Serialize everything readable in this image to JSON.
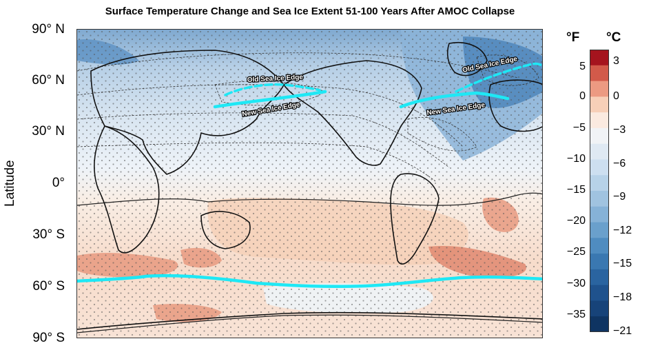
{
  "title": "Surface Temperature Change and Sea Ice Extent 51-100 Years After AMOC Collapse",
  "axis": {
    "ylabel": "Latitude",
    "lat_ticks": [
      "90° N",
      "60° N",
      "30° N",
      "0°",
      "30° S",
      "60° S",
      "90° S"
    ]
  },
  "annotations": {
    "old_edge_pacific": "Old Sea Ice Edge",
    "new_edge_pacific": "New Sea Ice Edge",
    "old_edge_atlantic": "Old Sea Ice Edge",
    "new_edge_atlantic": "New Sea Ice Edge"
  },
  "colorbar": {
    "unit_f": "°F",
    "unit_c": "°C",
    "f_ticks": [
      "5",
      "0",
      "−5",
      "−10",
      "−15",
      "−20",
      "−25",
      "−30",
      "−35"
    ],
    "c_ticks": [
      "3",
      "0",
      "−3",
      "−6",
      "−9",
      "−12",
      "−15",
      "−18",
      "−21"
    ],
    "colors": [
      "#a5141e",
      "#d25a4a",
      "#ec9a82",
      "#f7cfb8",
      "#fbeae0",
      "#f1f3f6",
      "#dfe9f3",
      "#cddff0",
      "#b7d2e8",
      "#a0c3e0",
      "#86b2d7",
      "#6aa0cc",
      "#4f8cc0",
      "#3a78b1",
      "#2a64a0",
      "#1f528d",
      "#174379",
      "#0f3462"
    ]
  },
  "legend_colors": {
    "sea_ice_edge": "#1ee8f5",
    "warming": "#f2c9b0",
    "cooling": "#c8dcec"
  }
}
